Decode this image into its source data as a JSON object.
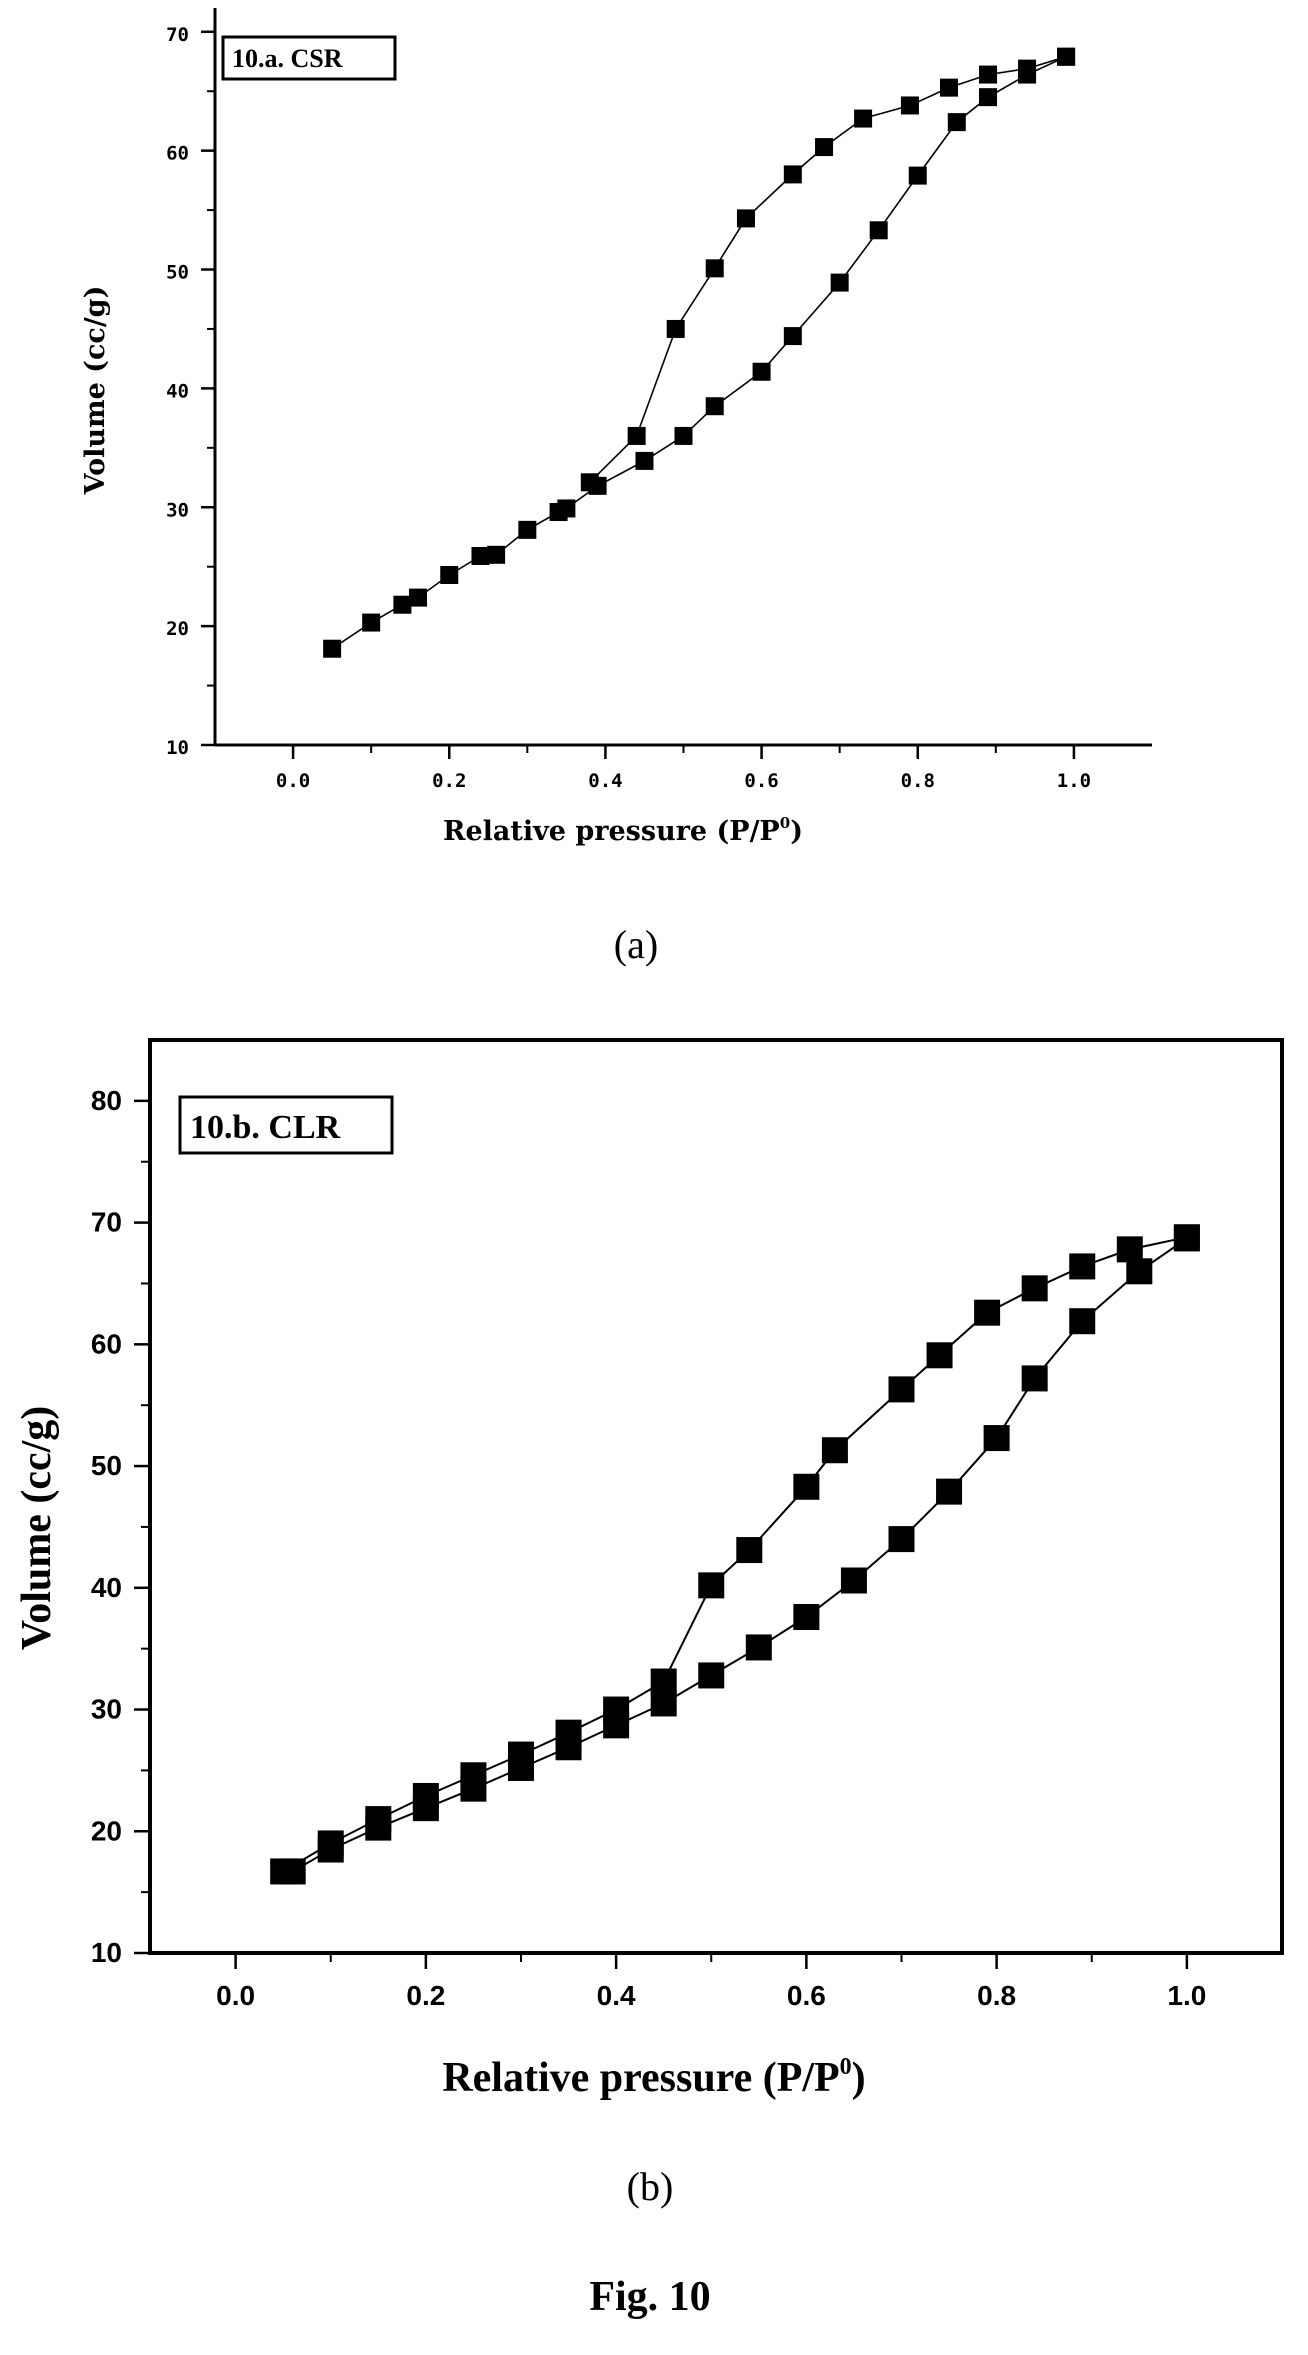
{
  "figure_caption": "Fig. 10",
  "panel_captions": [
    "(a)",
    "(b)"
  ],
  "chart_data": [
    {
      "type": "line",
      "title": "10.a. CSR",
      "xlabel": "Relative pressure (P/P",
      "xlabel_sup": "0",
      "xlabel_close": ")",
      "ylabel": "Volume (cc/g)",
      "xlim": [
        -0.1,
        1.1
      ],
      "ylim": [
        10,
        72
      ],
      "xticks": [
        0.0,
        0.2,
        0.4,
        0.6,
        0.8,
        1.0
      ],
      "xtick_labels": [
        "0.0",
        "0.2",
        "0.4",
        "0.6",
        "0.8",
        "1.0"
      ],
      "yticks": [
        10,
        20,
        30,
        40,
        50,
        60,
        70
      ],
      "ytick_labels": [
        "10",
        "20",
        "30",
        "40",
        "50",
        "60",
        "70"
      ],
      "marker": "square",
      "color": "#000000",
      "series": [
        {
          "x": [
            0.05,
            0.1,
            0.14,
            0.16,
            0.2,
            0.24,
            0.26,
            0.3,
            0.34,
            0.35,
            0.39,
            0.45,
            0.5,
            0.54,
            0.6,
            0.64,
            0.7,
            0.75,
            0.8,
            0.85,
            0.89,
            0.94,
            0.99
          ],
          "y": [
            18.1,
            20.3,
            21.8,
            22.4,
            24.3,
            25.9,
            26.0,
            28.1,
            29.6,
            29.9,
            31.8,
            33.9,
            36.0,
            38.5,
            41.4,
            44.4,
            48.9,
            53.3,
            57.9,
            62.4,
            64.5,
            66.4,
            67.9
          ]
        },
        {
          "x": [
            0.99,
            0.94,
            0.89,
            0.84,
            0.79,
            0.73,
            0.68,
            0.64,
            0.58,
            0.54,
            0.49,
            0.44,
            0.38
          ],
          "y": [
            67.9,
            66.9,
            66.4,
            65.3,
            63.8,
            62.7,
            60.3,
            58.0,
            54.3,
            50.1,
            45.0,
            36.0,
            32.1
          ]
        }
      ]
    },
    {
      "type": "line",
      "title": "10.b. CLR",
      "xlabel": "Relative pressure (P/P",
      "xlabel_sup": "0",
      "xlabel_close": ")",
      "ylabel": "Volume (cc/g)",
      "xlim": [
        -0.09,
        1.1
      ],
      "ylim": [
        10,
        85
      ],
      "xticks": [
        0.0,
        0.2,
        0.4,
        0.6,
        0.8,
        1.0
      ],
      "xtick_labels": [
        "0.0",
        "0.2",
        "0.4",
        "0.6",
        "0.8",
        "1.0"
      ],
      "yticks": [
        10,
        20,
        30,
        40,
        50,
        60,
        70,
        80
      ],
      "ytick_labels": [
        "10",
        "20",
        "30",
        "40",
        "50",
        "60",
        "70",
        "80"
      ],
      "marker": "square",
      "color": "#000000",
      "series": [
        {
          "x": [
            0.06,
            0.1,
            0.15,
            0.2,
            0.25,
            0.3,
            0.35,
            0.4,
            0.45,
            0.5,
            0.55,
            0.6,
            0.65,
            0.7,
            0.75,
            0.8,
            0.84,
            0.89,
            0.95,
            1.0
          ],
          "y": [
            16.7,
            18.5,
            20.3,
            21.9,
            23.5,
            25.2,
            26.9,
            28.7,
            30.5,
            32.8,
            35.1,
            37.6,
            40.6,
            44.0,
            47.9,
            52.3,
            57.2,
            61.9,
            66.0,
            68.7
          ]
        },
        {
          "x": [
            1.0,
            0.94,
            0.89,
            0.84,
            0.79,
            0.74,
            0.7,
            0.63,
            0.6,
            0.54,
            0.5,
            0.45,
            0.4,
            0.35,
            0.3,
            0.25,
            0.2,
            0.15,
            0.1,
            0.05
          ],
          "y": [
            68.8,
            67.8,
            66.4,
            64.6,
            62.6,
            59.1,
            56.3,
            51.3,
            48.3,
            43.1,
            40.2,
            32.3,
            30.0,
            28.1,
            26.3,
            24.6,
            22.9,
            21.0,
            19.0,
            16.7
          ]
        }
      ]
    }
  ]
}
